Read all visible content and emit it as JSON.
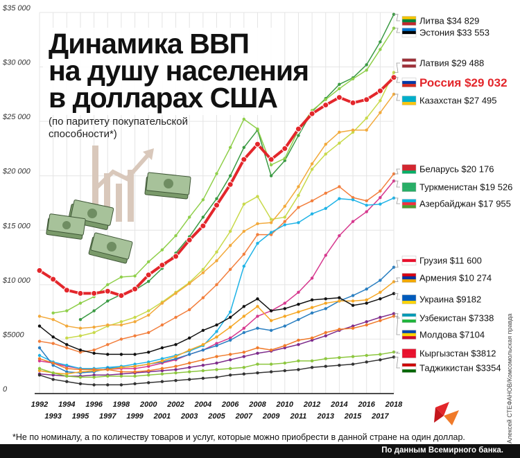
{
  "footnote": "*Не по номиналу, а по количеству товаров и услуг, которые можно приобрести в данной стране на один доллар.",
  "source": "По данным Всемирного банка.",
  "credit": "Алексей СТЕФАНОВ/Комсомольская правда",
  "chart_data": {
    "type": "line",
    "title": [
      "Динамика ВВП",
      "на душу населения",
      "в долларах США"
    ],
    "subtitle": [
      "(по паритету покупательской",
      "способности*)"
    ],
    "y_tick_labels": [
      "0",
      "$5000",
      "$10 000",
      "$15 000",
      "$20 000",
      "$25 000",
      "$30 000",
      "$35 000"
    ],
    "y_ticks": [
      0,
      5000,
      10000,
      15000,
      20000,
      25000,
      30000,
      35000
    ],
    "ylim": [
      0,
      35000
    ],
    "x": [
      1992,
      1993,
      1994,
      1995,
      1996,
      1997,
      1998,
      1999,
      2000,
      2001,
      2002,
      2003,
      2004,
      2005,
      2006,
      2007,
      2008,
      2009,
      2010,
      2011,
      2012,
      2013,
      2014,
      2015,
      2016,
      2017,
      2018
    ],
    "x_tick_labels": [
      "1992",
      "1993",
      "1994",
      "1995",
      "1996",
      "1997",
      "1998",
      "1999",
      "2000",
      "2001",
      "2002",
      "2003",
      "2004",
      "2005",
      "2006",
      "2007",
      "2008",
      "2009",
      "2010",
      "2011",
      "2012",
      "2013",
      "2014",
      "2015",
      "2016",
      "2017",
      "2018"
    ],
    "grid": true,
    "legend_position": "right",
    "series": [
      {
        "name": "Литва",
        "value_label": "$34 829",
        "color": "#3a9a43",
        "flag": [
          "#f4c400",
          "#00843d",
          "#c1272d"
        ],
        "values": [
          null,
          null,
          null,
          6800,
          7600,
          8500,
          9100,
          9500,
          10300,
          11500,
          12900,
          14400,
          16200,
          17900,
          20000,
          22600,
          24200,
          20000,
          21400,
          23700,
          25900,
          27100,
          28400,
          29000,
          30200,
          32300,
          34829
        ]
      },
      {
        "name": "Эстония",
        "value_label": "$33 553",
        "color": "#8fcf4a",
        "flag": [
          "#0072ce",
          "#000000",
          "#ffffff"
        ],
        "values": [
          null,
          7400,
          7600,
          8300,
          8900,
          10000,
          10700,
          10800,
          12100,
          13200,
          14500,
          16200,
          17800,
          20200,
          22600,
          25200,
          24300,
          21000,
          21600,
          24200,
          26000,
          27000,
          28000,
          28900,
          29700,
          31600,
          33553
        ]
      },
      {
        "name": "Латвия",
        "value_label": "$29 488",
        "color": "#c8d94a",
        "flag": [
          "#9e3039",
          "#ffffff",
          "#9e3039"
        ],
        "values": [
          null,
          null,
          5100,
          5300,
          5600,
          6200,
          6600,
          7000,
          7600,
          8400,
          9300,
          10200,
          11400,
          13000,
          14900,
          17400,
          18100,
          16000,
          16200,
          18200,
          20600,
          22000,
          23000,
          24000,
          25300,
          26900,
          29488
        ]
      },
      {
        "name": "Россия",
        "value_label": "$29 032",
        "color": "#e3262b",
        "highlight": true,
        "flag": [
          "#ffffff",
          "#0039a6",
          "#d52b1e"
        ],
        "values": [
          11300,
          10500,
          9500,
          9200,
          9200,
          9400,
          9000,
          9600,
          10900,
          11800,
          12600,
          14100,
          15400,
          17300,
          19200,
          21500,
          22900,
          21500,
          22500,
          24300,
          25700,
          26500,
          27200,
          26700,
          27000,
          27800,
          29032
        ]
      },
      {
        "name": "Казахстан",
        "value_label": "$27 495",
        "color": "#f2a93b",
        "flag": [
          "#00afca",
          "#00afca",
          "#fec50c"
        ],
        "values": [
          7100,
          6800,
          6200,
          6000,
          6100,
          6300,
          6300,
          6600,
          7200,
          8300,
          9200,
          10100,
          11100,
          12200,
          13600,
          14900,
          15600,
          15700,
          17200,
          19000,
          21100,
          22900,
          24000,
          24200,
          24200,
          25800,
          27495
        ]
      },
      {
        "name": "Беларусь",
        "value_label": "$20 176",
        "color": "#f27e3c",
        "flag": [
          "#d22730",
          "#d22730",
          "#00af66"
        ],
        "values": [
          4800,
          4600,
          4200,
          3800,
          4000,
          4500,
          5000,
          5300,
          5600,
          6300,
          7000,
          7700,
          8800,
          10000,
          11400,
          12800,
          14600,
          14600,
          15800,
          17100,
          17700,
          18400,
          19000,
          18000,
          17700,
          18600,
          20176
        ]
      },
      {
        "name": "Туркменистан",
        "value_label": "$19 526",
        "color": "#d6388e",
        "flag": [
          "#28ae66",
          "#28ae66",
          "#28ae66"
        ],
        "values": [
          3000,
          2800,
          2500,
          2300,
          2200,
          2200,
          2300,
          2300,
          2500,
          2800,
          3100,
          3600,
          4000,
          4600,
          5100,
          6000,
          7100,
          7600,
          8300,
          9300,
          10600,
          12700,
          14500,
          15800,
          16700,
          18000,
          19526
        ]
      },
      {
        "name": "Азербайджан",
        "value_label": "$17 955",
        "color": "#1fb3e6",
        "flag": [
          "#00b5e2",
          "#ef3340",
          "#509e2f"
        ],
        "values": [
          3500,
          2900,
          2600,
          2300,
          2300,
          2400,
          2500,
          2700,
          2900,
          3200,
          3500,
          3900,
          4400,
          5700,
          7500,
          11700,
          13800,
          14800,
          15500,
          15700,
          16500,
          17000,
          17900,
          17800,
          17300,
          17400,
          17955
        ]
      },
      {
        "name": "Грузия",
        "value_label": "$11 600",
        "color": "#2a7fc1",
        "flag": [
          "#ffffff",
          "#e8112d",
          "#ffffff"
        ],
        "values": [
          4200,
          2600,
          2000,
          1900,
          2000,
          2300,
          2400,
          2500,
          2700,
          2900,
          3200,
          3600,
          4000,
          4400,
          4900,
          5600,
          6000,
          5800,
          6200,
          6800,
          7400,
          7800,
          8500,
          9000,
          9600,
          10400,
          11600
        ]
      },
      {
        "name": "Армения",
        "value_label": "$10 274",
        "color": "#f5a623",
        "flag": [
          "#d90012",
          "#0033a0",
          "#f2a800"
        ],
        "values": [
          2100,
          1900,
          1800,
          2000,
          2100,
          2200,
          2400,
          2500,
          2700,
          3000,
          3400,
          4000,
          4500,
          5200,
          6100,
          7100,
          8000,
          6700,
          7100,
          7500,
          7900,
          8300,
          8500,
          8500,
          8600,
          9300,
          10274
        ]
      },
      {
        "name": "Украина",
        "value_label": "$9182",
        "color": "#111111",
        "flag": [
          "#005bbb",
          "#005bbb",
          "#ffd500"
        ],
        "values": [
          6200,
          5200,
          4500,
          4000,
          3700,
          3600,
          3600,
          3600,
          3800,
          4200,
          4500,
          5100,
          5800,
          6300,
          7000,
          8000,
          8700,
          7600,
          7800,
          8200,
          8600,
          8700,
          8800,
          8100,
          8300,
          8700,
          9182
        ]
      },
      {
        "name": "Узбекистан",
        "value_label": "$7338",
        "color": "#7d2b8b",
        "flag": [
          "#0099b5",
          "#ffffff",
          "#1eb53a"
        ],
        "values": [
          1800,
          1700,
          1600,
          1600,
          1700,
          1700,
          1800,
          1900,
          2000,
          2100,
          2200,
          2400,
          2600,
          2800,
          3100,
          3400,
          3700,
          3900,
          4200,
          4500,
          4900,
          5300,
          5800,
          6200,
          6600,
          7000,
          7338
        ]
      },
      {
        "name": "Молдова",
        "value_label": "$7104",
        "color": "#f07a2a",
        "flag": [
          "#0046ae",
          "#ffd200",
          "#cc092f"
        ],
        "values": [
          3200,
          2800,
          2300,
          2200,
          2200,
          2200,
          2000,
          2000,
          2100,
          2300,
          2500,
          2800,
          3100,
          3400,
          3600,
          3800,
          4200,
          4000,
          4400,
          4900,
          5100,
          5600,
          5900,
          6000,
          6300,
          6700,
          7104
        ]
      },
      {
        "name": "Кыргызстан",
        "value_label": "$3812",
        "color": "#8cc63e",
        "flag": [
          "#e8112d",
          "#e8112d",
          "#e8112d"
        ],
        "values": [
          2300,
          1900,
          1600,
          1500,
          1500,
          1600,
          1600,
          1600,
          1700,
          1800,
          1900,
          2000,
          2100,
          2200,
          2300,
          2400,
          2700,
          2700,
          2800,
          3000,
          3000,
          3200,
          3300,
          3400,
          3500,
          3600,
          3812
        ]
      },
      {
        "name": "Таджикистан",
        "value_label": "$3354",
        "color": "#333333",
        "flag": [
          "#cc0000",
          "#ffffff",
          "#006600"
        ],
        "values": [
          1700,
          1300,
          1100,
          900,
          800,
          800,
          800,
          900,
          1000,
          1100,
          1200,
          1300,
          1400,
          1500,
          1700,
          1800,
          1900,
          2000,
          2100,
          2200,
          2400,
          2500,
          2600,
          2700,
          2900,
          3100,
          3354
        ]
      }
    ]
  }
}
